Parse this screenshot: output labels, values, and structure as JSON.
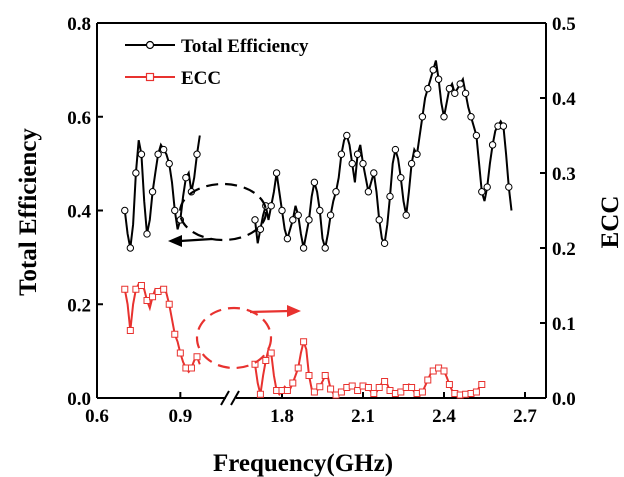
{
  "chart_data": {
    "type": "line",
    "xlabel": "Frequency(GHz)",
    "ylabel_left": "Total Efficiency",
    "ylabel_right": "ECC",
    "x_axis_break": true,
    "x_segments": [
      {
        "range": [
          0.6,
          1.05
        ],
        "ticks": [
          "0.6",
          "0.9"
        ]
      },
      {
        "range": [
          1.7,
          2.7
        ],
        "ticks": [
          "1.8",
          "2.1",
          "2.4",
          "2.7"
        ]
      }
    ],
    "ylim_left": [
      0.0,
      0.8
    ],
    "yticks_left": [
      "0.0",
      "0.2",
      "0.4",
      "0.6",
      "0.8"
    ],
    "ylim_right": [
      0.0,
      0.5
    ],
    "yticks_right": [
      "0.0",
      "0.1",
      "0.2",
      "0.3",
      "0.4",
      "0.5"
    ],
    "legend": {
      "position": "top-left",
      "entries": [
        "Total Efficiency",
        "ECC"
      ]
    },
    "series": [
      {
        "name": "Total Efficiency",
        "axis": "left",
        "color": "#000000",
        "marker": "circle",
        "segments": [
          [
            [
              0.7,
              0.4
            ],
            [
              0.71,
              0.35
            ],
            [
              0.72,
              0.32
            ],
            [
              0.73,
              0.37
            ],
            [
              0.74,
              0.48
            ],
            [
              0.75,
              0.55
            ],
            [
              0.76,
              0.52
            ],
            [
              0.77,
              0.42
            ],
            [
              0.78,
              0.35
            ],
            [
              0.79,
              0.38
            ],
            [
              0.8,
              0.44
            ],
            [
              0.81,
              0.48
            ],
            [
              0.82,
              0.52
            ],
            [
              0.83,
              0.54
            ],
            [
              0.84,
              0.53
            ],
            [
              0.85,
              0.52
            ],
            [
              0.86,
              0.5
            ],
            [
              0.87,
              0.46
            ],
            [
              0.88,
              0.4
            ],
            [
              0.89,
              0.36
            ],
            [
              0.9,
              0.38
            ],
            [
              0.91,
              0.43
            ],
            [
              0.92,
              0.47
            ],
            [
              0.93,
              0.48
            ],
            [
              0.94,
              0.44
            ],
            [
              0.95,
              0.47
            ],
            [
              0.96,
              0.52
            ],
            [
              0.97,
              0.56
            ]
          ],
          [
            [
              1.7,
              0.38
            ],
            [
              1.71,
              0.33
            ],
            [
              1.72,
              0.36
            ],
            [
              1.73,
              0.39
            ],
            [
              1.74,
              0.41
            ],
            [
              1.75,
              0.38
            ],
            [
              1.76,
              0.41
            ],
            [
              1.77,
              0.44
            ],
            [
              1.78,
              0.48
            ],
            [
              1.79,
              0.44
            ],
            [
              1.8,
              0.4
            ],
            [
              1.81,
              0.36
            ],
            [
              1.82,
              0.34
            ],
            [
              1.83,
              0.36
            ],
            [
              1.84,
              0.38
            ],
            [
              1.85,
              0.41
            ],
            [
              1.86,
              0.39
            ],
            [
              1.87,
              0.35
            ],
            [
              1.88,
              0.32
            ],
            [
              1.89,
              0.35
            ],
            [
              1.9,
              0.38
            ],
            [
              1.91,
              0.43
            ],
            [
              1.92,
              0.46
            ],
            [
              1.93,
              0.44
            ],
            [
              1.94,
              0.4
            ],
            [
              1.95,
              0.34
            ],
            [
              1.96,
              0.32
            ],
            [
              1.97,
              0.35
            ],
            [
              1.98,
              0.39
            ],
            [
              1.99,
              0.42
            ],
            [
              2.0,
              0.44
            ],
            [
              2.01,
              0.47
            ],
            [
              2.02,
              0.52
            ],
            [
              2.03,
              0.55
            ],
            [
              2.04,
              0.56
            ],
            [
              2.05,
              0.54
            ],
            [
              2.06,
              0.5
            ],
            [
              2.07,
              0.46
            ],
            [
              2.08,
              0.52
            ],
            [
              2.09,
              0.54
            ],
            [
              2.1,
              0.5
            ],
            [
              2.11,
              0.47
            ],
            [
              2.12,
              0.44
            ],
            [
              2.13,
              0.46
            ],
            [
              2.14,
              0.48
            ],
            [
              2.15,
              0.44
            ],
            [
              2.16,
              0.38
            ],
            [
              2.17,
              0.34
            ],
            [
              2.18,
              0.33
            ],
            [
              2.19,
              0.37
            ],
            [
              2.2,
              0.43
            ],
            [
              2.21,
              0.5
            ],
            [
              2.22,
              0.53
            ],
            [
              2.23,
              0.51
            ],
            [
              2.24,
              0.47
            ],
            [
              2.25,
              0.42
            ],
            [
              2.26,
              0.39
            ],
            [
              2.27,
              0.44
            ],
            [
              2.28,
              0.5
            ],
            [
              2.29,
              0.53
            ],
            [
              2.3,
              0.52
            ],
            [
              2.31,
              0.56
            ],
            [
              2.32,
              0.6
            ],
            [
              2.33,
              0.64
            ],
            [
              2.34,
              0.66
            ],
            [
              2.35,
              0.68
            ],
            [
              2.36,
              0.7
            ],
            [
              2.37,
              0.72
            ],
            [
              2.38,
              0.68
            ],
            [
              2.39,
              0.63
            ],
            [
              2.4,
              0.6
            ],
            [
              2.41,
              0.63
            ],
            [
              2.42,
              0.66
            ],
            [
              2.43,
              0.67
            ],
            [
              2.44,
              0.65
            ],
            [
              2.45,
              0.66
            ],
            [
              2.46,
              0.67
            ],
            [
              2.47,
              0.68
            ],
            [
              2.48,
              0.65
            ],
            [
              2.49,
              0.62
            ],
            [
              2.5,
              0.6
            ],
            [
              2.51,
              0.58
            ],
            [
              2.52,
              0.56
            ],
            [
              2.53,
              0.5
            ],
            [
              2.54,
              0.44
            ],
            [
              2.55,
              0.42
            ],
            [
              2.56,
              0.45
            ],
            [
              2.57,
              0.5
            ],
            [
              2.58,
              0.54
            ],
            [
              2.59,
              0.57
            ],
            [
              2.6,
              0.58
            ],
            [
              2.61,
              0.59
            ],
            [
              2.62,
              0.58
            ],
            [
              2.63,
              0.52
            ],
            [
              2.64,
              0.45
            ],
            [
              2.65,
              0.4
            ]
          ]
        ]
      },
      {
        "name": "ECC",
        "axis": "right",
        "color": "#e8322f",
        "marker": "square",
        "segments": [
          [
            [
              0.7,
              0.145
            ],
            [
              0.71,
              0.125
            ],
            [
              0.72,
              0.09
            ],
            [
              0.73,
              0.125
            ],
            [
              0.74,
              0.145
            ],
            [
              0.75,
              0.152
            ],
            [
              0.76,
              0.15
            ],
            [
              0.77,
              0.145
            ],
            [
              0.78,
              0.13
            ],
            [
              0.79,
              0.12
            ],
            [
              0.8,
              0.135
            ],
            [
              0.81,
              0.145
            ],
            [
              0.82,
              0.142
            ],
            [
              0.83,
              0.147
            ],
            [
              0.84,
              0.145
            ],
            [
              0.85,
              0.14
            ],
            [
              0.86,
              0.125
            ],
            [
              0.87,
              0.105
            ],
            [
              0.88,
              0.085
            ],
            [
              0.89,
              0.075
            ],
            [
              0.9,
              0.06
            ],
            [
              0.91,
              0.048
            ],
            [
              0.92,
              0.04
            ],
            [
              0.93,
              0.035
            ],
            [
              0.94,
              0.04
            ],
            [
              0.95,
              0.05
            ],
            [
              0.96,
              0.055
            ],
            [
              0.97,
              0.045
            ]
          ],
          [
            [
              1.7,
              0.045
            ],
            [
              1.71,
              0.02
            ],
            [
              1.72,
              0.005
            ],
            [
              1.73,
              0.03
            ],
            [
              1.74,
              0.05
            ],
            [
              1.75,
              0.065
            ],
            [
              1.76,
              0.06
            ],
            [
              1.77,
              0.03
            ],
            [
              1.78,
              0.01
            ],
            [
              1.79,
              0.005
            ],
            [
              1.8,
              0.01
            ],
            [
              1.81,
              0.015
            ],
            [
              1.82,
              0.01
            ],
            [
              1.83,
              0.012
            ],
            [
              1.84,
              0.02
            ],
            [
              1.85,
              0.03
            ],
            [
              1.86,
              0.04
            ],
            [
              1.87,
              0.06
            ],
            [
              1.88,
              0.075
            ],
            [
              1.89,
              0.065
            ],
            [
              1.9,
              0.03
            ],
            [
              1.91,
              0.012
            ],
            [
              1.92,
              0.008
            ],
            [
              1.93,
              0.01
            ],
            [
              1.94,
              0.015
            ],
            [
              1.95,
              0.022
            ],
            [
              1.96,
              0.03
            ],
            [
              1.97,
              0.028
            ],
            [
              1.98,
              0.012
            ],
            [
              1.99,
              0.006
            ],
            [
              2.0,
              0.004
            ],
            [
              2.01,
              0.005
            ],
            [
              2.02,
              0.008
            ],
            [
              2.03,
              0.01
            ],
            [
              2.04,
              0.014
            ],
            [
              2.05,
              0.016
            ],
            [
              2.06,
              0.016
            ],
            [
              2.07,
              0.012
            ],
            [
              2.08,
              0.01
            ],
            [
              2.09,
              0.012
            ],
            [
              2.1,
              0.016
            ],
            [
              2.11,
              0.016
            ],
            [
              2.12,
              0.014
            ],
            [
              2.13,
              0.008
            ],
            [
              2.14,
              0.006
            ],
            [
              2.15,
              0.008
            ],
            [
              2.16,
              0.014
            ],
            [
              2.17,
              0.02
            ],
            [
              2.18,
              0.022
            ],
            [
              2.19,
              0.018
            ],
            [
              2.2,
              0.01
            ],
            [
              2.21,
              0.006
            ],
            [
              2.22,
              0.006
            ],
            [
              2.23,
              0.006
            ],
            [
              2.24,
              0.008
            ],
            [
              2.25,
              0.01
            ],
            [
              2.26,
              0.014
            ],
            [
              2.27,
              0.018
            ],
            [
              2.28,
              0.014
            ],
            [
              2.29,
              0.008
            ],
            [
              2.3,
              0.006
            ],
            [
              2.31,
              0.004
            ],
            [
              2.32,
              0.008
            ],
            [
              2.33,
              0.016
            ],
            [
              2.34,
              0.024
            ],
            [
              2.35,
              0.032
            ],
            [
              2.36,
              0.036
            ],
            [
              2.37,
              0.038
            ],
            [
              2.38,
              0.04
            ],
            [
              2.39,
              0.04
            ],
            [
              2.4,
              0.036
            ],
            [
              2.41,
              0.028
            ],
            [
              2.42,
              0.018
            ],
            [
              2.43,
              0.01
            ],
            [
              2.44,
              0.006
            ],
            [
              2.45,
              0.004
            ],
            [
              2.46,
              0.004
            ],
            [
              2.47,
              0.004
            ],
            [
              2.48,
              0.005
            ],
            [
              2.49,
              0.006
            ],
            [
              2.5,
              0.006
            ],
            [
              2.51,
              0.006
            ],
            [
              2.52,
              0.008
            ],
            [
              2.53,
              0.014
            ],
            [
              2.54,
              0.018
            ],
            [
              2.55,
              0.02
            ]
          ]
        ]
      }
    ],
    "annotations": [
      {
        "type": "dashed-ellipse",
        "color": "#000000",
        "arrow": "left",
        "points_to": "left axis"
      },
      {
        "type": "dashed-ellipse",
        "color": "#e8322f",
        "arrow": "right",
        "points_to": "right axis"
      }
    ]
  }
}
